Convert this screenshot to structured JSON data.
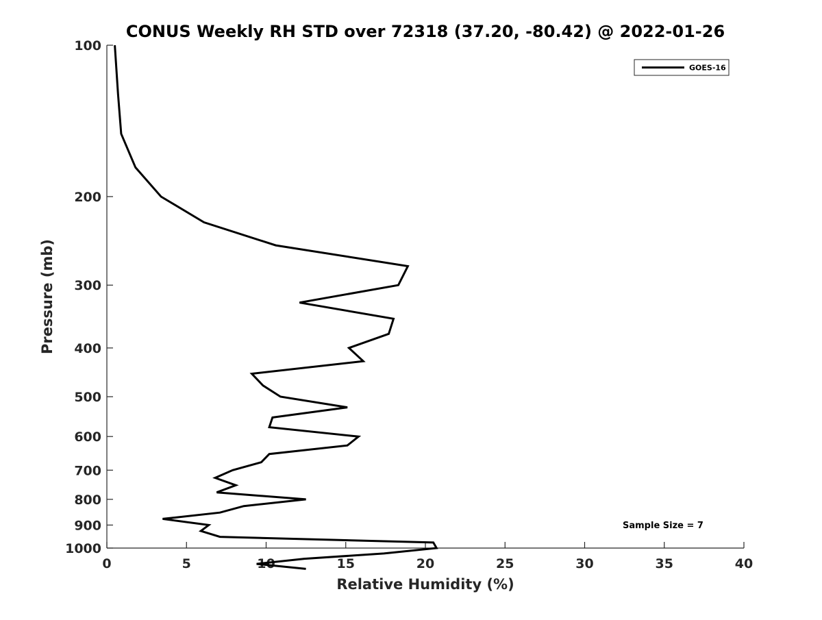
{
  "chart_data": {
    "type": "line",
    "title": "CONUS Weekly RH STD over 72318 (37.20, -80.42) @ 2022-01-26",
    "xlabel": "Relative Humidity (%)",
    "ylabel": "Pressure (mb)",
    "xlim": [
      0,
      40
    ],
    "ylim": [
      100,
      1000
    ],
    "yscale": "log",
    "y_reversed": true,
    "xticks": [
      "0",
      "5",
      "10",
      "15",
      "20",
      "25",
      "30",
      "35",
      "40"
    ],
    "xtick_values": [
      0,
      5,
      10,
      15,
      20,
      25,
      30,
      35,
      40
    ],
    "yticks": [
      "100",
      "200",
      "300",
      "400",
      "500",
      "600",
      "700",
      "800",
      "900",
      "1000"
    ],
    "ytick_values": [
      100,
      200,
      300,
      400,
      500,
      600,
      700,
      800,
      900,
      1000
    ],
    "grid": false,
    "legend_position": "top-right",
    "series": [
      {
        "name": "GOES-16",
        "color": "#000000",
        "points": [
          [
            0.5,
            100
          ],
          [
            0.7,
            125
          ],
          [
            0.9,
            150
          ],
          [
            1.8,
            175
          ],
          [
            3.4,
            200
          ],
          [
            6.1,
            225
          ],
          [
            10.6,
            250
          ],
          [
            18.9,
            275
          ],
          [
            18.3,
            300
          ],
          [
            12.1,
            325
          ],
          [
            18.0,
            350
          ],
          [
            17.7,
            375
          ],
          [
            15.2,
            400
          ],
          [
            16.1,
            425
          ],
          [
            9.1,
            450
          ],
          [
            9.8,
            475
          ],
          [
            10.9,
            500
          ],
          [
            15.1,
            525
          ],
          [
            10.4,
            550
          ],
          [
            10.2,
            575
          ],
          [
            15.8,
            600
          ],
          [
            15.1,
            625
          ],
          [
            10.2,
            650
          ],
          [
            9.7,
            675
          ],
          [
            7.9,
            700
          ],
          [
            6.8,
            725
          ],
          [
            8.1,
            750
          ],
          [
            6.9,
            775
          ],
          [
            12.5,
            800
          ],
          [
            8.6,
            825
          ],
          [
            7.1,
            850
          ],
          [
            3.5,
            875
          ],
          [
            6.4,
            900
          ],
          [
            5.9,
            925
          ],
          [
            7.1,
            950
          ],
          [
            20.5,
            975
          ],
          [
            20.7,
            1000
          ],
          [
            17.4,
            1025
          ],
          [
            12.4,
            1050
          ],
          [
            9.4,
            1075
          ],
          [
            12.5,
            1100
          ]
        ]
      }
    ],
    "annotation": "Sample Size = 7"
  }
}
